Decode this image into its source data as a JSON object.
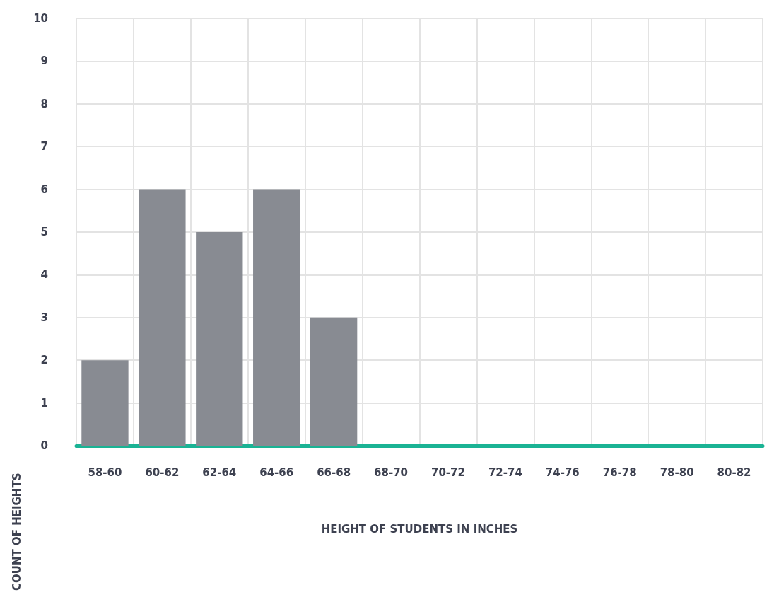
{
  "chart_data": {
    "type": "bar",
    "xlabel": "HEIGHT OF STUDENTS IN INCHES",
    "ylabel": "COUNT OF HEIGHTS",
    "categories": [
      "58-60",
      "60-62",
      "62-64",
      "64-66",
      "66-68",
      "68-70",
      "70-72",
      "72-74",
      "74-76",
      "76-78",
      "78-80",
      "80-82"
    ],
    "values": [
      2,
      6,
      5,
      6,
      3,
      0,
      0,
      0,
      0,
      0,
      0,
      0
    ],
    "color": "#888b92",
    "ylim": [
      0,
      10
    ],
    "yticks": [
      0,
      1,
      2,
      3,
      4,
      5,
      6,
      7,
      8,
      9,
      10
    ],
    "grid": true
  }
}
